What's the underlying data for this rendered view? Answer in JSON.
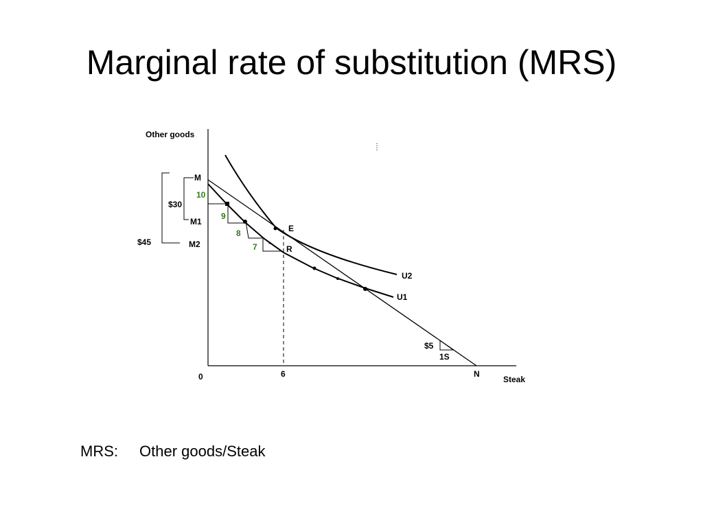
{
  "title": "Marginal rate of substitution (MRS)",
  "axes": {
    "y_label": "Other goods",
    "x_label": "Steak",
    "origin": "0",
    "x_tick": "6",
    "x_end": "N"
  },
  "points": {
    "M": "M",
    "M1": "M1",
    "M2": "M2",
    "E": "E",
    "R": "R"
  },
  "curves": {
    "u1": "U1",
    "u2": "U2"
  },
  "brackets": {
    "b30": "$30",
    "b45": "$45"
  },
  "steps": {
    "s10": "10",
    "s9": "9",
    "s8": "8",
    "s7": "7"
  },
  "price": {
    "dollar": "$5",
    "unit": "1S"
  },
  "caption": {
    "label": "MRS:",
    "text": "Other goods/Steak"
  },
  "colors": {
    "steps": "#2e7d1a",
    "lines": "#000000"
  }
}
